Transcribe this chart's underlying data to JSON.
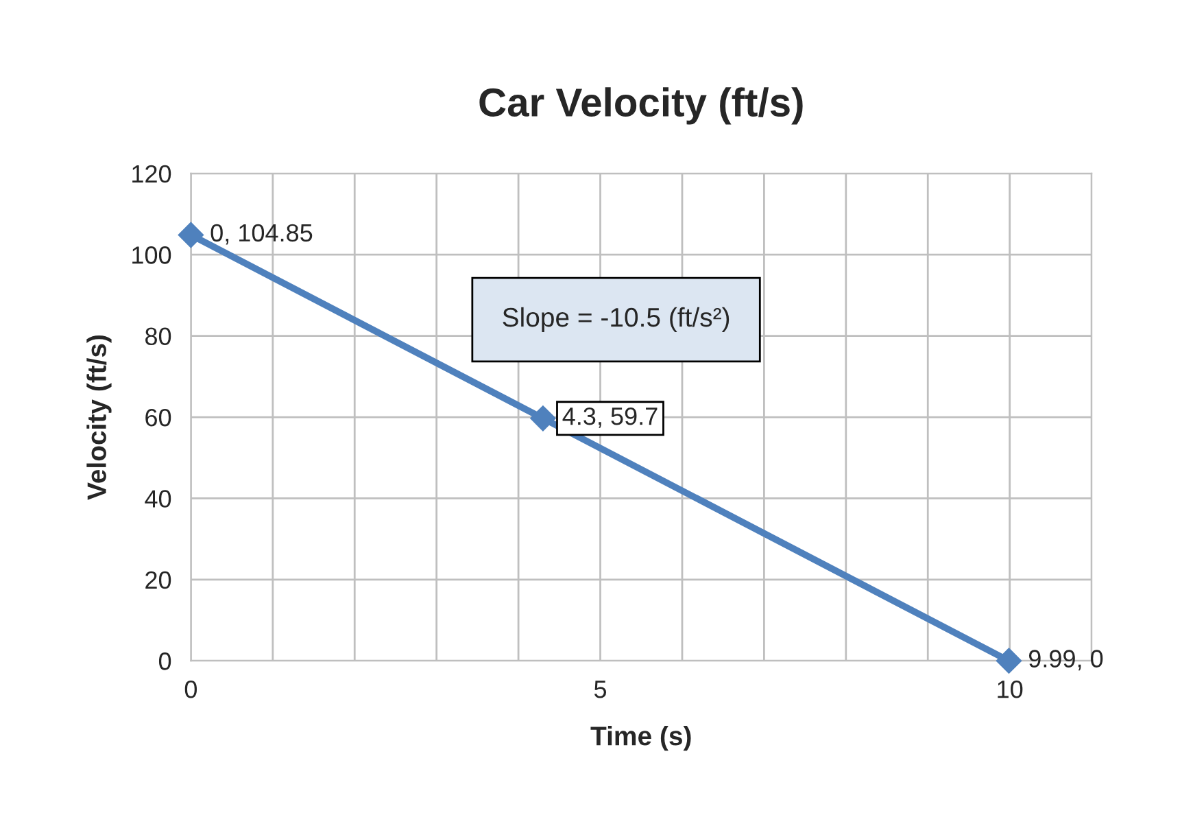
{
  "chart_data": {
    "type": "line",
    "title": "Car Velocity (ft/s)",
    "xlabel": "Time (s)",
    "ylabel": "Velocity (ft/s)",
    "series": [
      {
        "color": "#4f81bd",
        "x": [
          0,
          4.3,
          9.99
        ],
        "values": [
          104.85,
          59.7,
          0
        ],
        "value_labels": [
          "0, 104.85",
          "4.3, 59.7",
          "9.99, 0"
        ]
      }
    ],
    "xlim": [
      0,
      11
    ],
    "xticks": [
      0,
      {
        "value": 1,
        "label": null
      },
      {
        "value": 2,
        "label": null
      },
      {
        "value": 3,
        "label": null
      },
      {
        "value": 4,
        "label": null
      },
      5,
      {
        "value": 6,
        "label": null
      },
      {
        "value": 7,
        "label": null
      },
      {
        "value": 8,
        "label": null
      },
      {
        "value": 9,
        "label": null
      },
      10,
      {
        "value": 11,
        "label": null
      }
    ],
    "ylim": [
      0,
      120
    ],
    "yticks": [
      0,
      20,
      40,
      60,
      80,
      100,
      120
    ],
    "grid": true,
    "marker": "diamond",
    "line_style": "solid",
    "legend": false,
    "annotations": [
      "Slope = -10.5 (ft/s²)"
    ]
  }
}
